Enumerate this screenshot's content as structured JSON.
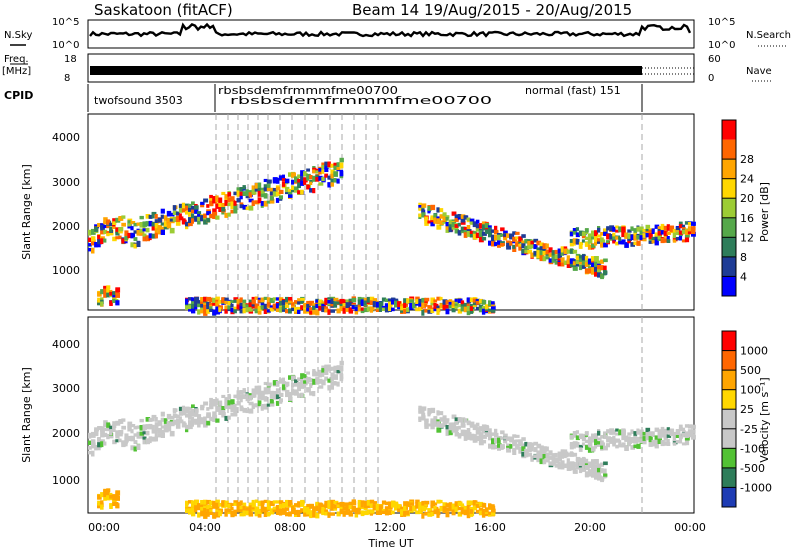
{
  "header": {
    "station": "Saskatoon (fitACF)",
    "beam_range": "Beam 14 19/Aug/2015 - 20/Aug/2015"
  },
  "strips": {
    "nsky_label": "N.Sky",
    "nsearch_label": "N.Search",
    "freq_label_1": "Freq.",
    "freq_label_2": "[MHz]",
    "nave_label": "Nave",
    "cpid_label": "CPID",
    "noise_ticks_left": [
      "10^5",
      "10^0"
    ],
    "noise_ticks_right": [
      "10^5",
      "10^0"
    ],
    "freq_ticks_left": [
      "18",
      "8"
    ],
    "freq_ticks_right": [
      "60",
      "0"
    ],
    "cpid_programs": [
      "twofsound 3503",
      "normal (fast) 151"
    ],
    "cpid_overlap_text": "rbsbsdemfrmmmfme00700"
  },
  "power_panel": {
    "ylabel": "Slant Range [km]",
    "yticks": [
      "1000",
      "2000",
      "3000",
      "4000"
    ],
    "colorbar_label": "Power [dB]",
    "colorbar_ticks": [
      "4",
      "8",
      "12",
      "16",
      "20",
      "24",
      "28"
    ],
    "colorbar_colors": [
      "#0000ff",
      "#1e3c96",
      "#2e7d5a",
      "#55a84a",
      "#9ccc34",
      "#ffd700",
      "#ffa500",
      "#ff6600",
      "#ff0000"
    ]
  },
  "velocity_panel": {
    "ylabel": "Slant Range [km]",
    "yticks": [
      "1000",
      "2000",
      "3000",
      "4000"
    ],
    "colorbar_label": "Velocity [m s⁻¹]",
    "colorbar_ticks": [
      "1000",
      "500",
      "100",
      "25",
      "-25",
      "-100",
      "-500",
      "-1000"
    ],
    "colorbar_colors": [
      "#1e3cb4",
      "#2e7d5a",
      "#52c234",
      "#c8c8c8",
      "#c8c8c8",
      "#ffd700",
      "#ffa500",
      "#ff6600",
      "#ff0000"
    ]
  },
  "xaxis": {
    "label": "Time UT",
    "ticks": [
      "00:00",
      "04:00",
      "08:00",
      "12:00",
      "16:00",
      "20:00",
      "00:00"
    ]
  },
  "chart_data": {
    "type": "heatmap",
    "title": "Saskatoon (fitACF)",
    "subtitle": "Beam 14 19/Aug/2015 - 20/Aug/2015",
    "xlabel": "Time UT",
    "ylabel": "Slant Range [km]",
    "x_range_hours": [
      0,
      24
    ],
    "y_range_km": [
      180,
      4500
    ],
    "power_range_db": [
      0,
      30
    ],
    "velocity_range_ms": [
      -1000,
      1000
    ],
    "features": [
      {
        "name": "near-range echoes",
        "t_start": 0.3,
        "t_end": 1.1,
        "range_start": 400,
        "range_end": 700
      },
      {
        "name": "rising band",
        "t_start": 0.0,
        "t_end": 10.0,
        "range_start": 1700,
        "range_end": 3300
      },
      {
        "name": "descending band",
        "t_start": 13.0,
        "t_end": 20.0,
        "range_start": 2400,
        "range_end": 1100
      },
      {
        "name": "low-range band",
        "t_start": 3.8,
        "t_end": 16.0,
        "range_start": 250,
        "range_end": 500
      },
      {
        "name": "late band",
        "t_start": 19.0,
        "t_end": 24.0,
        "range_start": 1700,
        "range_end": 2000
      }
    ]
  }
}
